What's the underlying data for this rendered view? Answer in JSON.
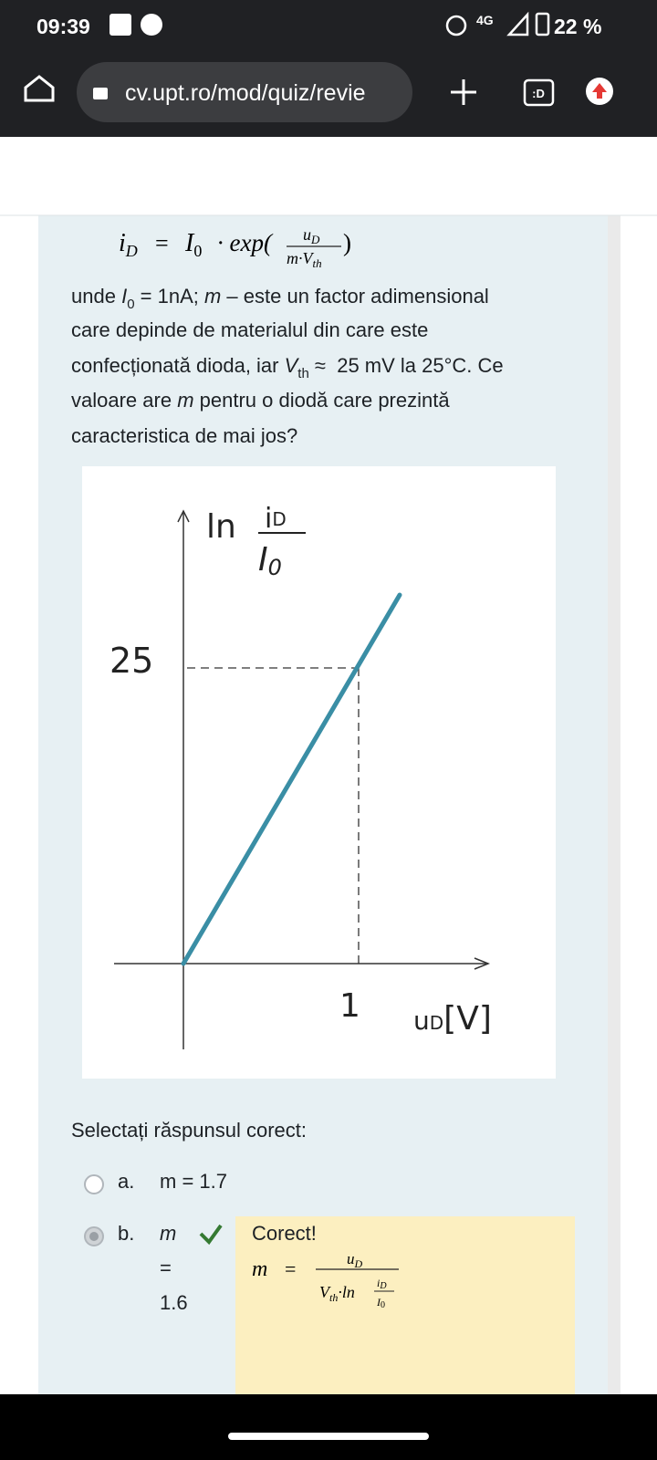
{
  "status_bar": {
    "time": "09:39",
    "network": "4G",
    "battery": "22 %"
  },
  "browser": {
    "url": "cv.upt.ro/mod/quiz/revie",
    "tab_icon": ":D"
  },
  "formula": {
    "lhs": "i",
    "lhs_sub": "D",
    "eq": "=",
    "i0": "I",
    "i0_sub": "0",
    "op": "· exp(",
    "num": "u",
    "num_sub": "D",
    "den": "m·V",
    "den_sub": "th",
    "close": ")"
  },
  "paragraph": {
    "lines": [
      [
        "unde ",
        "I",
        "0",
        " = 1nA; ",
        "m",
        " – este un factor adimensional"
      ],
      [
        "care depinde de materialul din care este"
      ],
      [
        "confecționată dioda, iar ",
        "V",
        "th",
        " ≈  25 mV la 25°C. Ce"
      ],
      [
        "valoare are ",
        "m",
        " pentru o diodă care prezintă"
      ],
      [
        "caracteristica de mai jos?"
      ]
    ]
  },
  "figure": {
    "y_value": 25,
    "x_value": 1,
    "y_axis_label": {
      "ln": "ln",
      "num": "i",
      "num_sub": "D",
      "den": "I",
      "den_sub": "0"
    },
    "x_axis_label": {
      "var": "u",
      "var_sub": "D",
      "unit": "[V]"
    }
  },
  "prompt": "Selectați răspunsul corect:",
  "options": [
    {
      "letter": "a.",
      "text": "m = 1.7"
    },
    {
      "letter": "b.",
      "text_lines": [
        "m",
        "=",
        "1.6"
      ]
    }
  ],
  "feedback": {
    "title": "Corect!",
    "lhs": "m",
    "eq": "=",
    "num": "u",
    "num_sub": "D",
    "den_v": "V",
    "den_sub": "th",
    "den_ln": "·ln",
    "den_i": "i",
    "den_i_sub": "D",
    "den_I": "I",
    "den_I_sub": "0"
  }
}
